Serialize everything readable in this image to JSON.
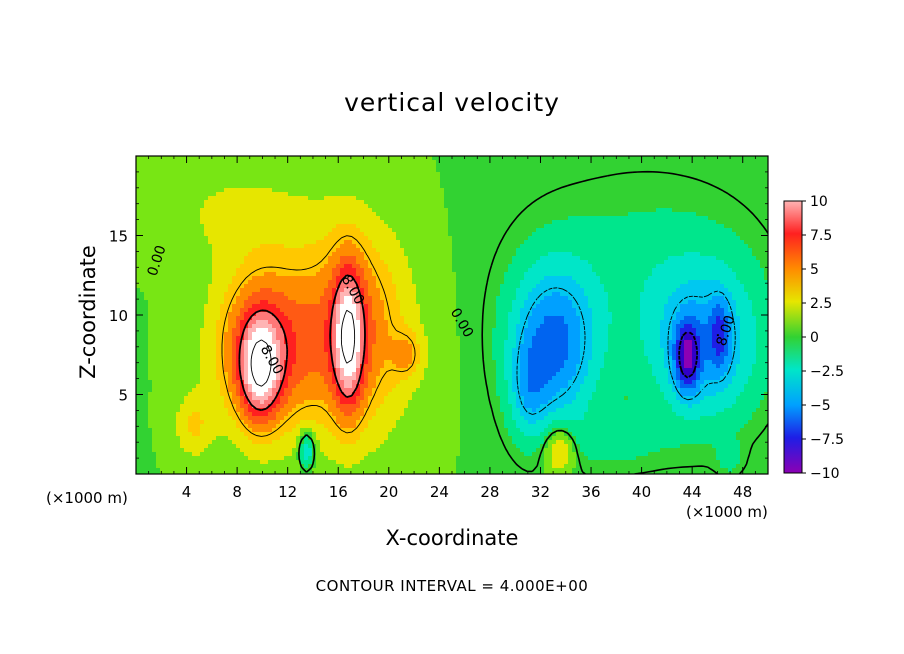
{
  "chart_data": {
    "type": "heatmap",
    "title": "vertical velocity",
    "xlabel": "X-coordinate",
    "ylabel": "Z-coordinate",
    "x_unit_left": "(×1000 m)",
    "x_unit_right": "(×1000 m)",
    "xlim": [
      0,
      50
    ],
    "ylim": [
      0,
      20
    ],
    "xticks": [
      4,
      8,
      12,
      16,
      20,
      24,
      28,
      32,
      36,
      40,
      44,
      48
    ],
    "yticks": [
      5,
      10,
      15
    ],
    "colorbar": {
      "range": [
        -10,
        10
      ],
      "tick_labels": [
        "10",
        "7.5",
        "5",
        "2.5",
        "0",
        "−2.5",
        "−5",
        "−7.5",
        "−10"
      ],
      "tick_values": [
        10,
        7.5,
        5,
        2.5,
        0,
        -2.5,
        -5,
        -7.5,
        -10
      ]
    },
    "contour_interval_text": "CONTOUR INTERVAL = 4.000E+00",
    "contour_labels": [
      "0.00",
      "8.00",
      "8.00",
      "0.00",
      "8.00"
    ],
    "features": [
      {
        "kind": "updraft",
        "x_center": 9.5,
        "z_center": 7,
        "peak": 12
      },
      {
        "kind": "updraft",
        "x_center": 16.5,
        "z_center": 8,
        "peak": 12
      },
      {
        "kind": "downdraft",
        "x_center": 33,
        "z_center": 8,
        "peak": -8
      },
      {
        "kind": "downdraft",
        "x_center": 44.5,
        "z_center": 8,
        "peak": -11
      }
    ]
  }
}
